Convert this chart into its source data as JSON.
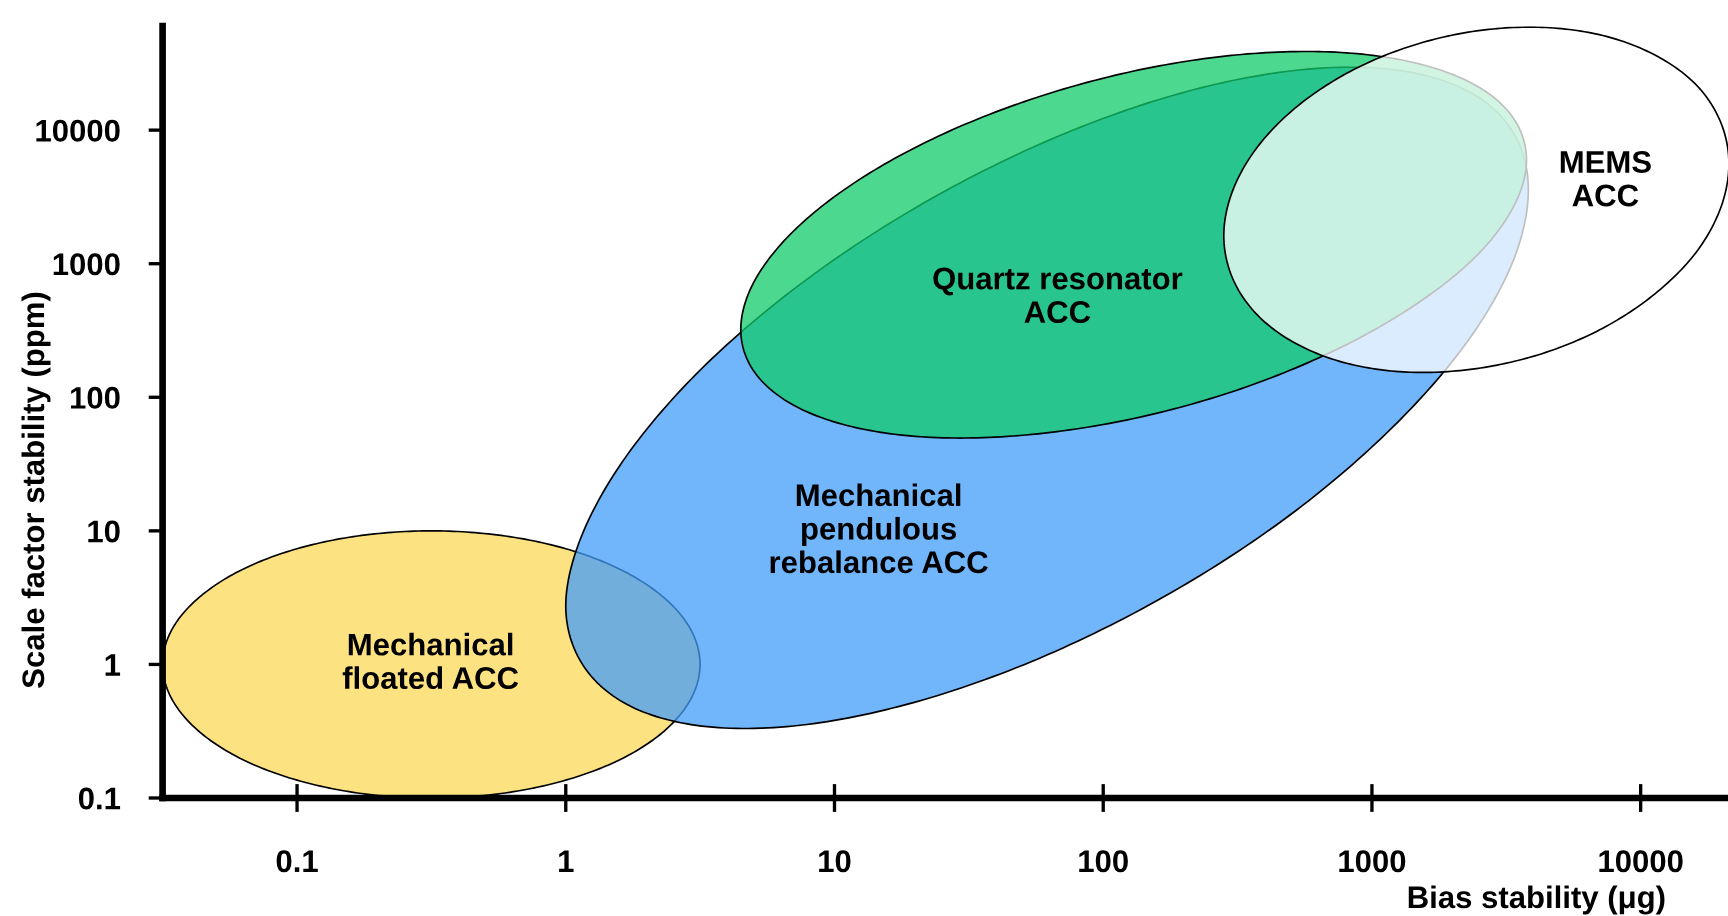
{
  "chart_data": {
    "type": "area",
    "xlabel": "Bias stability (μg)",
    "ylabel": "Scale factor stability (ppm)",
    "log": "xy",
    "xlim": [
      0.0316,
      21500
    ],
    "ylim": [
      0.1,
      60000
    ],
    "xticks": [
      0.1,
      1,
      10,
      100,
      1000,
      10000
    ],
    "yticks": [
      0.1,
      1,
      10,
      100,
      1000,
      10000
    ],
    "series": [
      {
        "color": "#fde282",
        "x": [
          0.0316,
          0.0342,
          0.0431,
          0.0621,
          0.1,
          0.174,
          0.316,
          0.574,
          1,
          1.61,
          2.32,
          2.92,
          3.16
        ],
        "values": [
          null,
          null,
          null,
          null,
          null,
          null,
          null,
          null,
          null,
          null,
          null,
          null,
          null
        ],
        "upper": [
          1,
          1.82,
          3.16,
          5.1,
          7.35,
          9.24,
          10,
          9.24,
          7.35,
          5.1,
          3.16,
          1.82,
          1
        ],
        "lower": [
          1,
          0.551,
          0.316,
          0.196,
          0.136,
          0.108,
          0.1,
          0.108,
          0.136,
          0.196,
          0.316,
          0.551,
          1
        ]
      },
      {
        "color": "#71b5fb",
        "x": [
          1.0,
          1.16,
          1.75,
          3.36,
          7.89,
          21.3,
          62,
          180,
          487,
          1140,
          2200,
          3320,
          3820
        ],
        "values": [
          null,
          null,
          null,
          null,
          null,
          null,
          null,
          null,
          null,
          null,
          null,
          null,
          null
        ],
        "upper": [
          2.74,
          9.75,
          40.6,
          180,
          764,
          2820,
          8310,
          18100,
          27600,
          28700,
          20300,
          9950,
          3570
        ],
        "lower": [
          2.74,
          0.984,
          0.484,
          0.342,
          0.355,
          0.542,
          1.18,
          3.47,
          12.8,
          54.5,
          241,
          1000,
          3570
        ]
      },
      {
        "color": "#4dd890",
        "x": [
          4.48,
          5.02,
          7.03,
          12,
          24.1,
          54.3,
          130,
          310,
          699,
          1400,
          2400,
          3350,
          3760
        ],
        "values": [
          null,
          null,
          null,
          null,
          null,
          null,
          null,
          null,
          null,
          null,
          null,
          null,
          null
        ],
        "upper": [
          321,
          733,
          1750,
          4100,
          8920,
          17100,
          27700,
          36500,
          38500,
          32400,
          22000,
          12400,
          5990
        ],
        "lower": [
          321,
          156,
          87.4,
          59.3,
          49.9,
          52.7,
          69.4,
          112,
          216,
          470,
          1100,
          2630,
          5990
        ]
      },
      {
        "color": "#ffffff",
        "x": [
          281,
          303,
          376,
          530,
          830,
          1400,
          2450,
          4290,
          7230,
          11300,
          16000,
          19800,
          21300
        ],
        "values": [
          null,
          null,
          null,
          null,
          null,
          null,
          null,
          null,
          null,
          null,
          null,
          null,
          null
        ],
        "upper": [
          1620,
          3510,
          7540,
          15200,
          27500,
          42700,
          55300,
          58800,
          51100,
          36500,
          22100,
          11600,
          5590
        ],
        "lower": [
          1620,
          778,
          410,
          248,
          177,
          154,
          164,
          212,
          329,
          595,
          1200,
          2580,
          5590
        ]
      }
    ],
    "annotations": [
      "Mechanical\nfloated ACC",
      "Mechanical\npendulous\nrebalance ACC",
      "Quartz resonator\nACC",
      "MEMS\nACC"
    ]
  }
}
